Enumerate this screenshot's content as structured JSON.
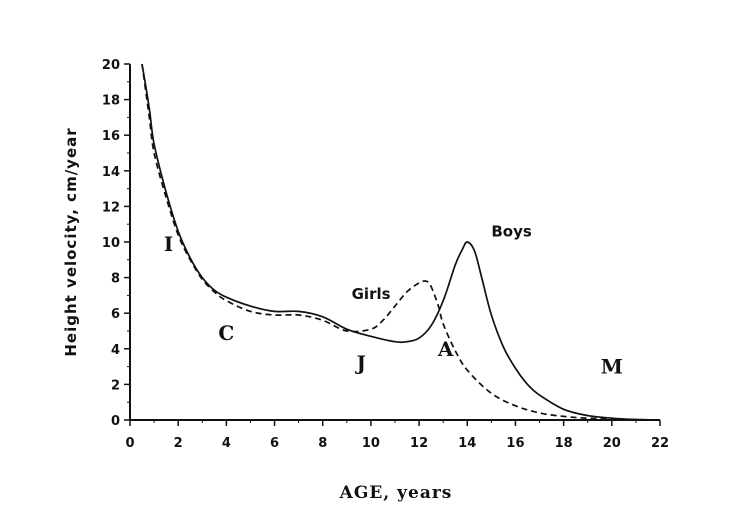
{
  "chart_data": {
    "type": "line",
    "xlabel": "AGE,  years",
    "ylabel": "Height  velocity,  cm/year",
    "xlim": [
      0,
      22
    ],
    "ylim": [
      0,
      20
    ],
    "xticks": [
      0,
      2,
      4,
      6,
      8,
      10,
      12,
      14,
      16,
      18,
      20,
      22
    ],
    "yticks": [
      0,
      2,
      4,
      6,
      8,
      10,
      12,
      14,
      16,
      18,
      20
    ],
    "grid": false,
    "series": [
      {
        "name": "Boys",
        "style": "solid",
        "x": [
          0.5,
          0.8,
          1,
          1.5,
          2,
          2.5,
          3,
          3.5,
          4,
          5,
          6,
          7,
          8,
          9,
          10,
          11,
          11.5,
          12,
          12.5,
          13,
          13.5,
          13.8,
          14,
          14.3,
          14.6,
          15,
          15.5,
          16,
          16.5,
          17,
          18,
          19,
          20,
          21,
          22
        ],
        "y": [
          20,
          17.5,
          15.5,
          12.8,
          10.6,
          9.1,
          8.0,
          7.3,
          6.9,
          6.4,
          6.1,
          6.1,
          5.8,
          5.1,
          4.7,
          4.4,
          4.4,
          4.6,
          5.3,
          6.7,
          8.7,
          9.6,
          10.0,
          9.5,
          8.0,
          5.9,
          4.1,
          2.9,
          2.0,
          1.4,
          0.6,
          0.25,
          0.1,
          0.03,
          0.0
        ]
      },
      {
        "name": "Girls",
        "style": "dashed",
        "x": [
          0.5,
          0.8,
          1,
          1.5,
          2,
          2.5,
          3,
          3.5,
          4,
          5,
          6,
          7,
          8,
          9,
          10,
          10.5,
          11,
          11.5,
          12,
          12.3,
          12.5,
          12.8,
          13,
          13.5,
          14,
          15,
          16,
          17,
          18,
          19,
          20,
          21,
          22
        ],
        "y": [
          20,
          17.0,
          15.0,
          12.5,
          10.4,
          9.0,
          7.9,
          7.2,
          6.7,
          6.1,
          5.9,
          5.9,
          5.6,
          5.0,
          5.1,
          5.6,
          6.4,
          7.2,
          7.7,
          7.8,
          7.5,
          6.4,
          5.4,
          3.9,
          2.8,
          1.5,
          0.8,
          0.4,
          0.2,
          0.1,
          0.05,
          0.02,
          0.0
        ]
      }
    ],
    "annotations": [
      {
        "text": "I",
        "x": 1.6,
        "y": 9.5
      },
      {
        "text": "C",
        "x": 4.0,
        "y": 4.5
      },
      {
        "text": "J",
        "x": 9.6,
        "y": 2.8
      },
      {
        "text": "A",
        "x": 13.1,
        "y": 3.6
      },
      {
        "text": "M",
        "x": 20.0,
        "y": 2.6
      }
    ]
  }
}
